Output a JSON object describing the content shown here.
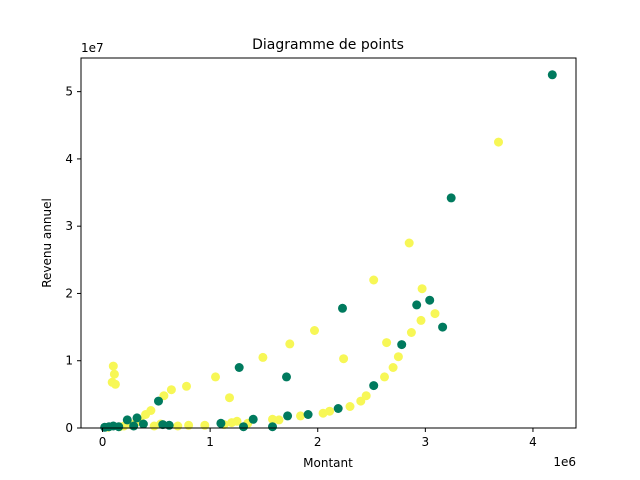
{
  "chart_data": {
    "type": "scatter",
    "title": "Diagramme de points",
    "xlabel": "Montant",
    "ylabel": "Revenu annuel",
    "x_offset_label": "1e6",
    "y_offset_label": "1e7",
    "xlim": [
      -200000,
      4400000
    ],
    "ylim": [
      0,
      55000000
    ],
    "x_ticks": [
      0,
      1000000,
      2000000,
      3000000,
      4000000
    ],
    "x_tick_labels": [
      "0",
      "1",
      "2",
      "3",
      "4"
    ],
    "y_ticks": [
      0,
      10000000,
      20000000,
      30000000,
      40000000,
      50000000
    ],
    "y_tick_labels": [
      "0",
      "1",
      "2",
      "3",
      "4",
      "5"
    ],
    "grid": false,
    "colors": {
      "green": "#007a5e",
      "yellow": "#f7f756"
    },
    "series": [
      {
        "color": "green",
        "points": [
          [
            20000,
            100000
          ],
          [
            60000,
            200000
          ],
          [
            100000,
            300000
          ],
          [
            150000,
            200000
          ],
          [
            230000,
            1200000
          ],
          [
            290000,
            300000
          ],
          [
            320000,
            1500000
          ],
          [
            380000,
            600000
          ],
          [
            520000,
            4000000
          ],
          [
            560000,
            500000
          ],
          [
            620000,
            400000
          ],
          [
            1100000,
            700000
          ],
          [
            1270000,
            9000000
          ],
          [
            1310000,
            200000
          ],
          [
            1400000,
            1300000
          ],
          [
            1580000,
            200000
          ],
          [
            1710000,
            7600000
          ],
          [
            1720000,
            1800000
          ],
          [
            1910000,
            2000000
          ],
          [
            2190000,
            2900000
          ],
          [
            2230000,
            17800000
          ],
          [
            2520000,
            6300000
          ],
          [
            2780000,
            12400000
          ],
          [
            2920000,
            18300000
          ],
          [
            3040000,
            19000000
          ],
          [
            3160000,
            15000000
          ],
          [
            3240000,
            34200000
          ],
          [
            4180000,
            52500000
          ]
        ]
      },
      {
        "color": "yellow",
        "points": [
          [
            50000,
            100000
          ],
          [
            90000,
            6800000
          ],
          [
            100000,
            9200000
          ],
          [
            110000,
            8000000
          ],
          [
            120000,
            6500000
          ],
          [
            160000,
            200000
          ],
          [
            200000,
            300000
          ],
          [
            260000,
            500000
          ],
          [
            310000,
            800000
          ],
          [
            350000,
            1200000
          ],
          [
            400000,
            2000000
          ],
          [
            450000,
            2600000
          ],
          [
            480000,
            300000
          ],
          [
            540000,
            600000
          ],
          [
            570000,
            4800000
          ],
          [
            640000,
            5700000
          ],
          [
            700000,
            300000
          ],
          [
            780000,
            6200000
          ],
          [
            800000,
            400000
          ],
          [
            950000,
            400000
          ],
          [
            1050000,
            7600000
          ],
          [
            1130000,
            500000
          ],
          [
            1180000,
            4500000
          ],
          [
            1200000,
            800000
          ],
          [
            1250000,
            1000000
          ],
          [
            1350000,
            700000
          ],
          [
            1490000,
            10500000
          ],
          [
            1580000,
            1300000
          ],
          [
            1640000,
            1200000
          ],
          [
            1740000,
            12500000
          ],
          [
            1840000,
            1800000
          ],
          [
            1970000,
            14500000
          ],
          [
            2050000,
            2200000
          ],
          [
            2110000,
            2500000
          ],
          [
            2240000,
            10300000
          ],
          [
            2300000,
            3200000
          ],
          [
            2400000,
            4000000
          ],
          [
            2450000,
            4800000
          ],
          [
            2520000,
            22000000
          ],
          [
            2620000,
            7600000
          ],
          [
            2640000,
            12700000
          ],
          [
            2700000,
            9000000
          ],
          [
            2750000,
            10600000
          ],
          [
            2850000,
            27500000
          ],
          [
            2870000,
            14200000
          ],
          [
            2960000,
            16000000
          ],
          [
            2970000,
            20700000
          ],
          [
            3090000,
            17000000
          ],
          [
            3680000,
            42500000
          ]
        ]
      }
    ]
  }
}
